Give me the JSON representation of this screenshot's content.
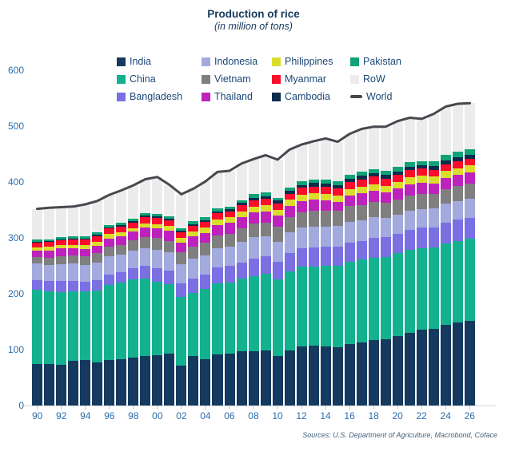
{
  "header": {
    "title": "Production of rice",
    "subtitle": "(in million of tons)"
  },
  "source_note": "Sources: U.S. Department of Agriculture, Macrobond, Coface",
  "ui_colors": {
    "title_text": "#17395e",
    "legend_text": "#1c4776",
    "axis_text": "#2e6da9",
    "source_text": "#44617c",
    "axis_line": "#d6d6d6"
  },
  "legend": [
    {
      "label": "India",
      "color": "#15395f",
      "type": "box"
    },
    {
      "label": "Indonesia",
      "color": "#a2aade",
      "type": "box"
    },
    {
      "label": "Philippines",
      "color": "#dade2b",
      "type": "box"
    },
    {
      "label": "Pakistan",
      "color": "#0fa377",
      "type": "box"
    },
    {
      "label": "China",
      "color": "#14b18f",
      "type": "box"
    },
    {
      "label": "Vietnam",
      "color": "#7f7f7f",
      "type": "box"
    },
    {
      "label": "Myanmar",
      "color": "#fb0d2c",
      "type": "box"
    },
    {
      "label": "RoW",
      "color": "#ececec",
      "type": "box"
    },
    {
      "label": "Bangladesh",
      "color": "#7a70e4",
      "type": "box"
    },
    {
      "label": "Thailand",
      "color": "#bd22bd",
      "type": "box"
    },
    {
      "label": "Cambodia",
      "color": "#0c2c4e",
      "type": "box"
    },
    {
      "label": "World",
      "color": "#46494e",
      "type": "line"
    }
  ],
  "chart_data": {
    "type": "bar",
    "stacked": true,
    "title": "Production of rice",
    "subtitle": "(in million of tons)",
    "xlabel": "",
    "ylabel": "",
    "ylim": [
      0,
      600
    ],
    "yticks": [
      0,
      100,
      200,
      300,
      400,
      500,
      600
    ],
    "grid": false,
    "legend_position": "top",
    "x": [
      1990,
      1991,
      1992,
      1993,
      1994,
      1995,
      1996,
      1997,
      1998,
      1999,
      2000,
      2001,
      2002,
      2003,
      2004,
      2005,
      2006,
      2007,
      2008,
      2009,
      2010,
      2011,
      2012,
      2013,
      2014,
      2015,
      2016,
      2017,
      2018,
      2019,
      2020,
      2021,
      2022,
      2023,
      2024,
      2025,
      2026
    ],
    "x_tick_labels": [
      "90",
      "92",
      "94",
      "96",
      "98",
      "00",
      "02",
      "04",
      "06",
      "08",
      "10",
      "12",
      "14",
      "16",
      "18",
      "20",
      "22",
      "24",
      "26"
    ],
    "series": [
      {
        "name": "India",
        "color": "#15395f",
        "values": [
          74.3,
          74.7,
          72.9,
          80.3,
          81.8,
          77.0,
          81.7,
          82.5,
          86.1,
          88.0,
          89.7,
          93.3,
          71.8,
          88.5,
          83.1,
          91.8,
          93.4,
          96.7,
          97.5,
          99.2,
          89.1,
          99.0,
          105.2,
          106.6,
          105.5,
          104.4,
          109.7,
          112.8,
          116.5,
          118.9,
          124.4,
          129.5,
          135.8,
          137.8,
          145.0,
          149.0,
          152.0
        ]
      },
      {
        "name": "China",
        "color": "#14b18f",
        "values": [
          132.5,
          129.5,
          130.5,
          124.4,
          122.0,
          129.0,
          134.0,
          137.0,
          139.1,
          138.9,
          131.5,
          124.3,
          122.2,
          112.5,
          125.4,
          126.4,
          127.2,
          130.2,
          134.3,
          136.6,
          137.0,
          140.7,
          143.0,
          142.5,
          144.6,
          145.8,
          147.8,
          148.9,
          148.5,
          146.7,
          148.3,
          149.0,
          145.9,
          144.6,
          145.3,
          146.0,
          146.5
        ]
      },
      {
        "name": "Bangladesh",
        "color": "#7a70e4",
        "values": [
          17.9,
          18.3,
          18.8,
          18.1,
          17.7,
          18.0,
          18.9,
          18.9,
          19.9,
          23.1,
          25.1,
          24.3,
          25.2,
          26.2,
          25.6,
          28.8,
          29.0,
          28.8,
          31.2,
          31.0,
          31.7,
          33.7,
          33.8,
          34.4,
          34.5,
          34.5,
          34.6,
          32.7,
          34.9,
          35.9,
          34.6,
          35.8,
          36.3,
          36.8,
          37.0,
          37.2,
          37.5
        ]
      },
      {
        "name": "Indonesia",
        "color": "#a2aade",
        "values": [
          29.0,
          29.0,
          31.4,
          31.0,
          30.1,
          32.3,
          33.2,
          31.2,
          31.7,
          32.1,
          33.0,
          32.5,
          33.4,
          35.0,
          34.8,
          34.9,
          35.3,
          37.0,
          38.3,
          36.4,
          35.5,
          36.5,
          36.6,
          36.3,
          35.6,
          36.2,
          36.9,
          37.0,
          36.7,
          34.7,
          34.5,
          34.4,
          34.0,
          33.0,
          33.5,
          34.0,
          34.6
        ]
      },
      {
        "name": "Vietnam",
        "color": "#7f7f7f",
        "values": [
          12.4,
          13.1,
          14.0,
          14.5,
          15.1,
          16.1,
          16.9,
          17.7,
          18.3,
          20.1,
          20.5,
          20.6,
          21.5,
          22.1,
          22.7,
          22.8,
          22.9,
          24.4,
          24.4,
          24.4,
          26.4,
          27.1,
          27.5,
          28.2,
          28.2,
          28.2,
          27.5,
          27.7,
          27.8,
          27.3,
          27.4,
          27.5,
          27.0,
          26.6,
          26.5,
          26.5,
          26.5
        ]
      },
      {
        "name": "Thailand",
        "color": "#bd22bd",
        "values": [
          11.0,
          13.0,
          13.3,
          12.7,
          13.5,
          14.0,
          14.5,
          15.6,
          15.8,
          16.5,
          17.0,
          17.5,
          17.2,
          18.0,
          17.4,
          18.2,
          18.9,
          19.8,
          19.9,
          20.3,
          20.3,
          20.5,
          20.2,
          20.5,
          18.8,
          15.8,
          19.2,
          20.4,
          20.3,
          17.7,
          18.9,
          19.9,
          20.2,
          19.0,
          20.0,
          20.1,
          20.1
        ]
      },
      {
        "name": "Philippines",
        "color": "#dade2b",
        "values": [
          6.0,
          6.2,
          6.0,
          6.3,
          6.9,
          6.9,
          7.4,
          7.3,
          6.5,
          7.7,
          8.1,
          8.4,
          8.5,
          8.8,
          9.4,
          9.8,
          10.0,
          10.5,
          10.8,
          10.2,
          10.5,
          10.7,
          11.4,
          11.8,
          12.0,
          11.5,
          11.7,
          12.2,
          11.8,
          11.9,
          12.4,
          12.5,
          12.4,
          12.0,
          12.1,
          12.2,
          12.3
        ]
      },
      {
        "name": "Myanmar",
        "color": "#fb0d2c",
        "values": [
          8.6,
          8.9,
          9.2,
          9.5,
          9.8,
          10.1,
          10.4,
          10.0,
          10.5,
          10.9,
          10.8,
          10.5,
          10.6,
          10.7,
          10.8,
          11.0,
          10.6,
          10.7,
          11.2,
          11.6,
          11.1,
          11.0,
          11.7,
          11.9,
          12.6,
          12.2,
          12.6,
          13.2,
          13.2,
          12.9,
          12.6,
          12.4,
          12.2,
          12.0,
          12.0,
          12.0,
          12.0
        ]
      },
      {
        "name": "Cambodia",
        "color": "#0c2c4e",
        "values": [
          1.6,
          1.7,
          1.8,
          1.9,
          2.0,
          2.2,
          2.3,
          2.4,
          2.5,
          2.6,
          2.5,
          2.7,
          2.6,
          2.9,
          2.6,
          3.6,
          3.8,
          4.2,
          4.5,
          4.7,
          5.2,
          5.4,
          5.7,
          5.9,
          5.9,
          5.8,
          6.0,
          6.1,
          6.2,
          6.3,
          5.9,
          6.1,
          6.3,
          6.5,
          6.8,
          7.0,
          7.3
        ]
      },
      {
        "name": "Pakistan",
        "color": "#0fa377",
        "values": [
          3.3,
          3.2,
          3.1,
          4.0,
          3.4,
          4.3,
          4.3,
          4.3,
          4.7,
          5.2,
          4.8,
          3.9,
          4.5,
          4.8,
          5.0,
          5.5,
          5.4,
          5.6,
          6.9,
          6.8,
          5.0,
          6.2,
          5.8,
          6.7,
          7.0,
          6.8,
          6.8,
          7.5,
          7.3,
          7.4,
          8.4,
          9.3,
          7.3,
          9.0,
          9.9,
          10.0,
          10.3
        ]
      },
      {
        "name": "RoW",
        "color": "#ececec",
        "values": [
          55.4,
          56.4,
          54.0,
          53.3,
          57.7,
          56.1,
          53.4,
          58.1,
          58.9,
          59.9,
          66.0,
          57.0,
          60.5,
          58.5,
          64.2,
          65.2,
          63.5,
          65.1,
          62.0,
          66.8,
          68.2,
          67.2,
          66.1,
          68.2,
          73.3,
          70.8,
          73.2,
          76.5,
          75.8,
          79.3,
          81.6,
          78.6,
          75.6,
          84.7,
          86.9,
          86.0,
          81.9
        ]
      }
    ],
    "line_series": {
      "name": "World",
      "color": "#46494e",
      "values": [
        352,
        354,
        355,
        356,
        360,
        366,
        377,
        385,
        394,
        405,
        409,
        395,
        378,
        388,
        401,
        418,
        420,
        433,
        441,
        448,
        440,
        458,
        467,
        473,
        478,
        472,
        486,
        495,
        499,
        499,
        509,
        515,
        513,
        522,
        535,
        540,
        541
      ]
    }
  }
}
